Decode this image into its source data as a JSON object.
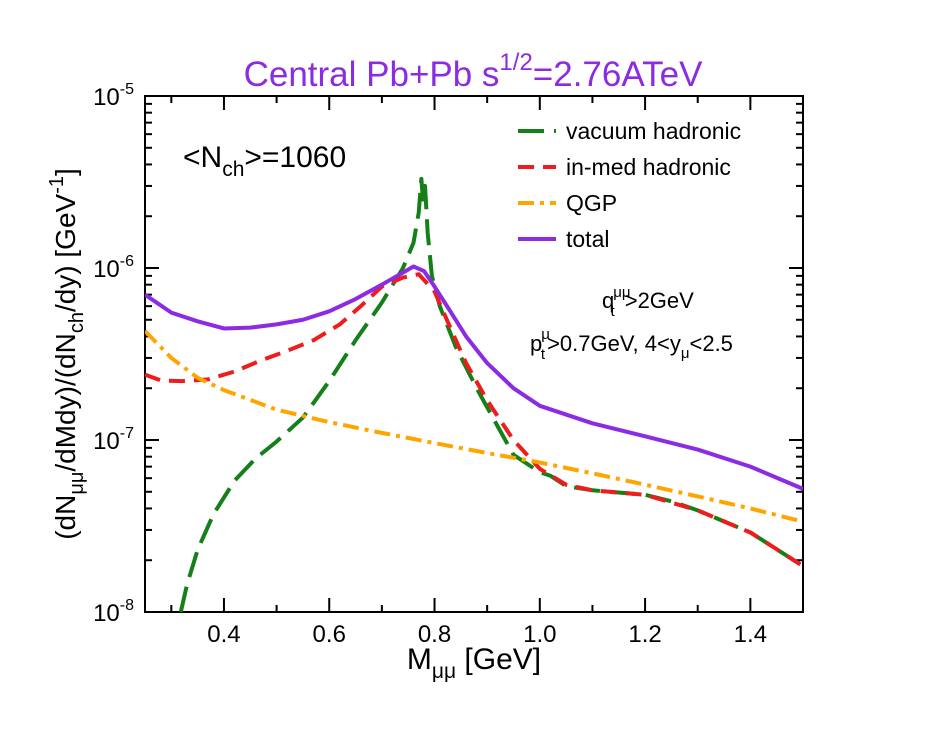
{
  "chart_data": {
    "type": "line",
    "title": {
      "prefix": "Central Pb+Pb  s",
      "superscript": "1/2",
      "suffix": "=2.76ATeV",
      "color": "#8b2be2"
    },
    "xlabel": {
      "main": "M",
      "sub": "μμ",
      "unit": " [GeV]"
    },
    "ylabel": {
      "p1": "(dN",
      "sub1": "μμ",
      "p2": "/dMdy)/(dN",
      "sub2": "ch",
      "p3": "/dy) [GeV",
      "sup": "-1",
      "p4": "]"
    },
    "x_range": [
      0.25,
      1.5
    ],
    "y_range": [
      1e-08,
      1e-05
    ],
    "y_scale": "log",
    "x_ticks": [
      {
        "value": 0.4,
        "label": "0.4"
      },
      {
        "value": 0.6,
        "label": "0.6"
      },
      {
        "value": 0.8,
        "label": "0.8"
      },
      {
        "value": 1.0,
        "label": "1.0"
      },
      {
        "value": 1.2,
        "label": "1.2"
      },
      {
        "value": 1.4,
        "label": "1.4"
      }
    ],
    "y_ticks": [
      {
        "value": 1e-08,
        "base": "10",
        "exp": "-8"
      },
      {
        "value": 1e-07,
        "base": "10",
        "exp": "-7"
      },
      {
        "value": 1e-06,
        "base": "10",
        "exp": "-6"
      },
      {
        "value": 1e-05,
        "base": "10",
        "exp": "-5"
      }
    ],
    "annotations": {
      "nch": {
        "left": "<N",
        "sub": "ch",
        "right": ">=1060"
      },
      "qt": {
        "base": "q",
        "sub": "t",
        "sup": "μμ",
        "rest": ">2GeV"
      },
      "pt": {
        "base": "p",
        "sub": "t",
        "sup": "μ",
        "mid": ">0.7GeV, 4<y",
        "sub2": "μ",
        "rest": "<2.5"
      }
    },
    "series": [
      {
        "name": "vacuum hadronic",
        "color": "#15801a",
        "dash": "long",
        "points": [
          [
            0.318,
            1e-08
          ],
          [
            0.33,
            1.45e-08
          ],
          [
            0.35,
            2.3e-08
          ],
          [
            0.38,
            3.7e-08
          ],
          [
            0.42,
            5.8e-08
          ],
          [
            0.46,
            7.8e-08
          ],
          [
            0.5,
            9.8e-08
          ],
          [
            0.55,
            1.35e-07
          ],
          [
            0.6,
            2.2e-07
          ],
          [
            0.65,
            3.8e-07
          ],
          [
            0.7,
            6.3e-07
          ],
          [
            0.74,
            1e-06
          ],
          [
            0.76,
            1.4e-06
          ],
          [
            0.77,
            2.1e-06
          ],
          [
            0.775,
            3.3e-06
          ],
          [
            0.778,
            2.5e-06
          ],
          [
            0.782,
            3e-06
          ],
          [
            0.787,
            1.6e-06
          ],
          [
            0.795,
            9e-07
          ],
          [
            0.81,
            6e-07
          ],
          [
            0.84,
            3.5e-07
          ],
          [
            0.88,
            2e-07
          ],
          [
            0.92,
            1.2e-07
          ],
          [
            0.95,
            8.2e-08
          ],
          [
            1.0,
            6.5e-08
          ],
          [
            1.02,
            6.2e-08
          ],
          [
            1.05,
            5.4e-08
          ],
          [
            1.1,
            5.1e-08
          ],
          [
            1.2,
            4.8e-08
          ],
          [
            1.25,
            4.4e-08
          ],
          [
            1.3,
            3.9e-08
          ],
          [
            1.4,
            2.9e-08
          ],
          [
            1.5,
            1.85e-08
          ]
        ]
      },
      {
        "name": "in-med hadronic",
        "color": "#ee1c1c",
        "dash": "medium",
        "points": [
          [
            0.25,
            2.4e-07
          ],
          [
            0.28,
            2.22e-07
          ],
          [
            0.32,
            2.2e-07
          ],
          [
            0.37,
            2.25e-07
          ],
          [
            0.42,
            2.5e-07
          ],
          [
            0.47,
            2.9e-07
          ],
          [
            0.52,
            3.3e-07
          ],
          [
            0.57,
            3.8e-07
          ],
          [
            0.62,
            4.7e-07
          ],
          [
            0.66,
            6e-07
          ],
          [
            0.7,
            7.8e-07
          ],
          [
            0.74,
            8.8e-07
          ],
          [
            0.77,
            9.2e-07
          ],
          [
            0.8,
            7.3e-07
          ],
          [
            0.83,
            4.5e-07
          ],
          [
            0.86,
            2.8e-07
          ],
          [
            0.9,
            1.7e-07
          ],
          [
            0.95,
            1e-07
          ],
          [
            1.0,
            6.8e-08
          ],
          [
            1.05,
            5.5e-08
          ],
          [
            1.1,
            5.1e-08
          ],
          [
            1.2,
            4.8e-08
          ],
          [
            1.3,
            3.9e-08
          ],
          [
            1.4,
            2.9e-08
          ],
          [
            1.5,
            1.85e-08
          ]
        ]
      },
      {
        "name": "QGP",
        "color": "#ffa500",
        "dash": "dashdot",
        "points": [
          [
            0.25,
            4.3e-07
          ],
          [
            0.3,
            3e-07
          ],
          [
            0.35,
            2.3e-07
          ],
          [
            0.4,
            1.95e-07
          ],
          [
            0.5,
            1.5e-07
          ],
          [
            0.6,
            1.27e-07
          ],
          [
            0.7,
            1.1e-07
          ],
          [
            0.8,
            9.6e-08
          ],
          [
            0.9,
            8.4e-08
          ],
          [
            1.0,
            7.4e-08
          ],
          [
            1.1,
            6.4e-08
          ],
          [
            1.2,
            5.5e-08
          ],
          [
            1.3,
            4.7e-08
          ],
          [
            1.4,
            4e-08
          ],
          [
            1.5,
            3.35e-08
          ]
        ]
      },
      {
        "name": "total",
        "color": "#8b2be2",
        "dash": "solid",
        "points": [
          [
            0.25,
            7e-07
          ],
          [
            0.3,
            5.5e-07
          ],
          [
            0.35,
            4.9e-07
          ],
          [
            0.4,
            4.45e-07
          ],
          [
            0.45,
            4.5e-07
          ],
          [
            0.5,
            4.7e-07
          ],
          [
            0.55,
            5e-07
          ],
          [
            0.6,
            5.6e-07
          ],
          [
            0.65,
            6.6e-07
          ],
          [
            0.7,
            8e-07
          ],
          [
            0.74,
            9.4e-07
          ],
          [
            0.76,
            1.02e-06
          ],
          [
            0.78,
            9.6e-07
          ],
          [
            0.8,
            7.8e-07
          ],
          [
            0.83,
            5.6e-07
          ],
          [
            0.86,
            4e-07
          ],
          [
            0.9,
            2.8e-07
          ],
          [
            0.95,
            2e-07
          ],
          [
            1.0,
            1.58e-07
          ],
          [
            1.1,
            1.25e-07
          ],
          [
            1.2,
            1.05e-07
          ],
          [
            1.3,
            8.8e-08
          ],
          [
            1.4,
            7e-08
          ],
          [
            1.5,
            5.2e-08
          ]
        ]
      }
    ],
    "legend_position": "top-right"
  }
}
